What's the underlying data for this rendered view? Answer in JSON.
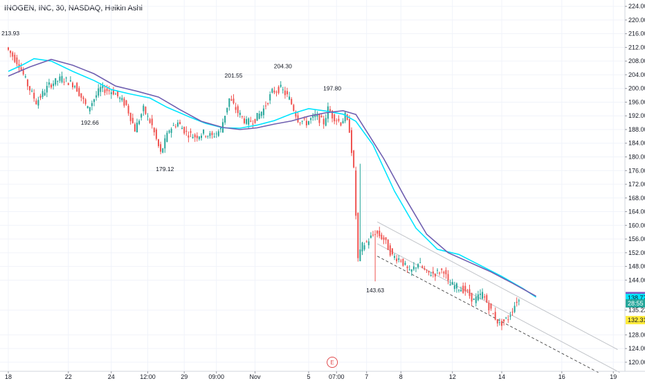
{
  "header": {
    "symbol_title": "INOGEN, INC, 30, NASDAQ, Heikin Ashi"
  },
  "chart_data": {
    "type": "candlestick",
    "price_axis": {
      "ticks": [
        224,
        220,
        216,
        212,
        208,
        204,
        200,
        196,
        192,
        188,
        184,
        180,
        176,
        172,
        168,
        164,
        160,
        156,
        152,
        148,
        144,
        135.22,
        128,
        124,
        120
      ],
      "tick_labels": [
        "224.00",
        "220.00",
        "216.00",
        "212.00",
        "208.00",
        "204.00",
        "200.00",
        "196.00",
        "192.00",
        "188.00",
        "184.00",
        "180.00",
        "176.00",
        "172.00",
        "168.00",
        "164.00",
        "160.00",
        "156.00",
        "152.00",
        "148.00",
        "144.00",
        "135.22",
        "128.00",
        "124.00",
        "120.00"
      ]
    },
    "time_axis": {
      "labels": [
        "18",
        "22",
        "24",
        "12:00",
        "29",
        "09:00",
        "Nov",
        "5",
        "07:00",
        "7",
        "8",
        "12",
        "14",
        "16",
        "19"
      ],
      "positions": [
        0,
        28,
        48,
        65,
        82,
        97,
        115,
        140,
        153,
        167,
        183,
        207,
        230,
        258,
        282
      ]
    },
    "annotations": [
      {
        "label": "213.93",
        "t": 1,
        "price": 213.93,
        "side": "above"
      },
      {
        "label": "192.66",
        "t": 38,
        "price": 192.66,
        "side": "below"
      },
      {
        "label": "179.12",
        "t": 73,
        "price": 179.12,
        "side": "below"
      },
      {
        "label": "201.55",
        "t": 105,
        "price": 201.55,
        "side": "above"
      },
      {
        "label": "204.30",
        "t": 128,
        "price": 204.3,
        "side": "above"
      },
      {
        "label": "197.80",
        "t": 151,
        "price": 197.8,
        "side": "above"
      },
      {
        "label": "143.63",
        "t": 171,
        "price": 143.63,
        "side": "below"
      }
    ],
    "price_tags": [
      {
        "label": "139.32",
        "price": 139.32,
        "color": "#7e57c2",
        "text_color": "#ffffff"
      },
      {
        "label": "138.77",
        "price": 138.77,
        "color": "#00e5ff",
        "text_color": "#131722"
      },
      {
        "label": "28:55",
        "price": 137.2,
        "color": "#26a69a",
        "text_color": "#ffffff"
      },
      {
        "label": "132.31",
        "price": 132.31,
        "color": "#ffeb3b",
        "text_color": "#131722"
      }
    ],
    "event_marker": {
      "label": "E",
      "t": 151
    },
    "series": [
      {
        "name": "",
        "color": "#00e5ff",
        "points": [
          [
            0,
            205
          ],
          [
            7,
            207
          ],
          [
            12,
            208.7
          ],
          [
            20,
            208
          ],
          [
            30,
            205
          ],
          [
            40,
            202.3
          ],
          [
            48,
            199.7
          ],
          [
            56,
            198.5
          ],
          [
            66,
            197.2
          ],
          [
            74,
            194.5
          ],
          [
            84,
            191.8
          ],
          [
            92,
            189.8
          ],
          [
            100,
            188.5
          ],
          [
            108,
            188.4
          ],
          [
            116,
            189.3
          ],
          [
            124,
            190.6
          ],
          [
            132,
            192.6
          ],
          [
            140,
            194.1
          ],
          [
            148,
            193.4
          ],
          [
            156,
            192.5
          ],
          [
            162,
            190.4
          ],
          [
            170,
            183.5
          ],
          [
            180,
            170
          ],
          [
            190,
            159.2
          ],
          [
            200,
            153
          ],
          [
            210,
            151.5
          ],
          [
            220,
            148.3
          ],
          [
            230,
            145.1
          ],
          [
            240,
            141.5
          ],
          [
            246,
            139
          ]
        ]
      },
      {
        "name": "",
        "color": "#6f5fb0",
        "points": [
          [
            0,
            203.6
          ],
          [
            10,
            206.3
          ],
          [
            20,
            208.5
          ],
          [
            30,
            206.8
          ],
          [
            40,
            204.3
          ],
          [
            50,
            200.7
          ],
          [
            60,
            199.2
          ],
          [
            70,
            197.5
          ],
          [
            80,
            193.8
          ],
          [
            90,
            190.4
          ],
          [
            100,
            188.6
          ],
          [
            108,
            188
          ],
          [
            116,
            188.5
          ],
          [
            124,
            189.6
          ],
          [
            132,
            190.5
          ],
          [
            140,
            191.9
          ],
          [
            148,
            192.9
          ],
          [
            156,
            193.5
          ],
          [
            162,
            192.4
          ],
          [
            168,
            186.5
          ],
          [
            175,
            179.5
          ],
          [
            185,
            168
          ],
          [
            195,
            157.4
          ],
          [
            205,
            152
          ],
          [
            215,
            149.2
          ],
          [
            225,
            146.4
          ],
          [
            235,
            143.1
          ],
          [
            246,
            139.3
          ]
        ]
      }
    ],
    "channel_lines": [
      {
        "style": "solid",
        "color": "#c0c3c8",
        "points": [
          [
            172,
            161
          ],
          [
            284,
            123.7
          ]
        ]
      },
      {
        "style": "solid",
        "color": "#c0c3c8",
        "points": [
          [
            172,
            154.6
          ],
          [
            285,
            117
          ]
        ]
      },
      {
        "style": "dashed",
        "color": "#555555",
        "points": [
          [
            172,
            151
          ],
          [
            275,
            117
          ]
        ]
      }
    ]
  }
}
